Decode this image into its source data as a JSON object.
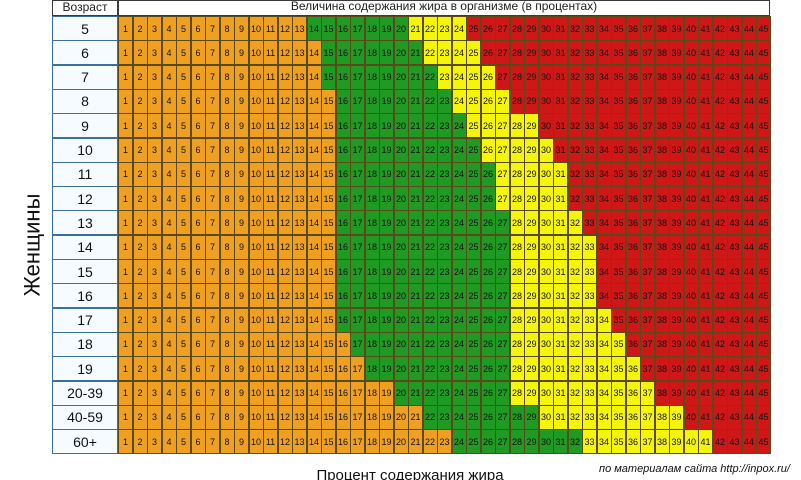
{
  "chart_data": {
    "type": "heatmap",
    "title": "Величина содержания жира в организме (в процентах)",
    "row_header": "Возраст",
    "side_label": "Женщины",
    "xlabel": "Процент содержания жира",
    "source_note": "по материалам сайта http://inpox.ru/",
    "ages": [
      "5",
      "6",
      "7",
      "8",
      "9",
      "10",
      "11",
      "12",
      "13",
      "14",
      "15",
      "16",
      "17",
      "18",
      "19",
      "20-39",
      "40-59",
      "60+"
    ],
    "percent_values": [
      1,
      2,
      3,
      4,
      5,
      6,
      7,
      8,
      9,
      10,
      11,
      12,
      13,
      14,
      15,
      16,
      17,
      18,
      19,
      20,
      21,
      22,
      23,
      24,
      25,
      26,
      27,
      28,
      29,
      30,
      31,
      32,
      33,
      34,
      35,
      36,
      37,
      38,
      39,
      40,
      41,
      42,
      43,
      44,
      45
    ],
    "zone_names": [
      "orange",
      "green",
      "yellow",
      "red"
    ],
    "zone_colors": {
      "orange": "#f0a020",
      "green": "#1f9a22",
      "yellow": "#f5f50c",
      "red": "#cf1717"
    },
    "zones": [
      {
        "age": "5",
        "green": [
          14,
          20
        ],
        "yellow": [
          21,
          24
        ],
        "red_from": 25
      },
      {
        "age": "6",
        "green": [
          15,
          21
        ],
        "yellow": [
          22,
          25
        ],
        "red_from": 26
      },
      {
        "age": "7",
        "green": [
          15,
          22
        ],
        "yellow": [
          23,
          26
        ],
        "red_from": 27
      },
      {
        "age": "8",
        "green": [
          16,
          23
        ],
        "yellow": [
          24,
          27
        ],
        "red_from": 28
      },
      {
        "age": "9",
        "green": [
          16,
          24
        ],
        "yellow": [
          25,
          29
        ],
        "red_from": 30
      },
      {
        "age": "10",
        "green": [
          16,
          25
        ],
        "yellow": [
          26,
          30
        ],
        "red_from": 31
      },
      {
        "age": "11",
        "green": [
          16,
          26
        ],
        "yellow": [
          27,
          31
        ],
        "red_from": 32
      },
      {
        "age": "12",
        "green": [
          16,
          26
        ],
        "yellow": [
          27,
          31
        ],
        "red_from": 32
      },
      {
        "age": "13",
        "green": [
          16,
          27
        ],
        "yellow": [
          28,
          32
        ],
        "red_from": 33
      },
      {
        "age": "14",
        "green": [
          16,
          27
        ],
        "yellow": [
          28,
          33
        ],
        "red_from": 34
      },
      {
        "age": "15",
        "green": [
          16,
          27
        ],
        "yellow": [
          28,
          33
        ],
        "red_from": 34
      },
      {
        "age": "16",
        "green": [
          16,
          27
        ],
        "yellow": [
          28,
          33
        ],
        "red_from": 34
      },
      {
        "age": "17",
        "green": [
          16,
          27
        ],
        "yellow": [
          28,
          34
        ],
        "red_from": 35
      },
      {
        "age": "18",
        "green": [
          17,
          27
        ],
        "yellow": [
          28,
          35
        ],
        "red_from": 36
      },
      {
        "age": "19",
        "green": [
          18,
          27
        ],
        "yellow": [
          28,
          36
        ],
        "red_from": 37
      },
      {
        "age": "20-39",
        "green": [
          20,
          27
        ],
        "yellow": [
          28,
          37
        ],
        "red_from": 38
      },
      {
        "age": "40-59",
        "green": [
          22,
          29
        ],
        "yellow": [
          30,
          39
        ],
        "red_from": 40
      },
      {
        "age": "60+",
        "green": [
          24,
          32
        ],
        "yellow": [
          33,
          41
        ],
        "red_from": 42
      }
    ]
  }
}
